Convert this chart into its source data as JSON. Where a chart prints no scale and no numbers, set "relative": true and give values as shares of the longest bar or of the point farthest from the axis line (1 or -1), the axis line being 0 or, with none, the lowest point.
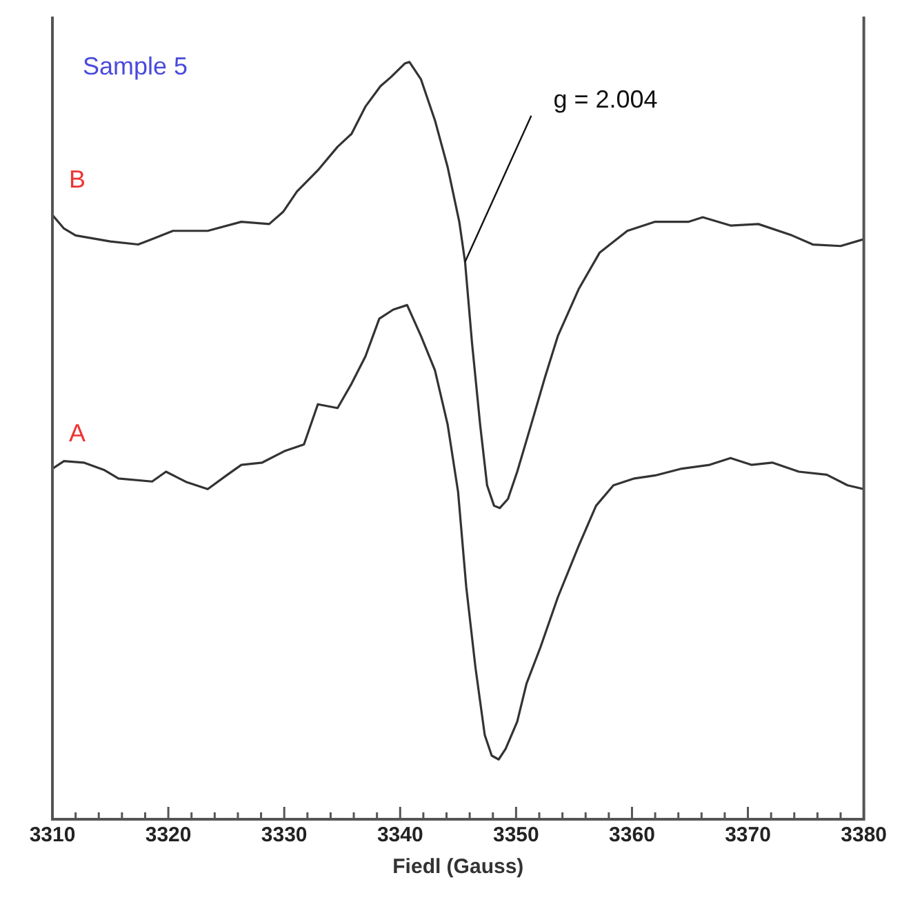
{
  "chart_data": {
    "type": "line",
    "title": "Sample 5",
    "xlabel": "Fiedl (Gauss)",
    "relative": true,
    "grid": false,
    "legend": false,
    "marker": "none",
    "line_style": "solid",
    "xlim": [
      3310,
      3380
    ],
    "xticks": [
      3310,
      {
        "value": 3312,
        "label": null
      },
      {
        "value": 3314,
        "label": null
      },
      {
        "value": 3316,
        "label": null
      },
      {
        "value": 3318,
        "label": null
      },
      3320,
      {
        "value": 3322,
        "label": null
      },
      {
        "value": 3324,
        "label": null
      },
      {
        "value": 3326,
        "label": null
      },
      {
        "value": 3328,
        "label": null
      },
      3330,
      {
        "value": 3332,
        "label": null
      },
      {
        "value": 3334,
        "label": null
      },
      {
        "value": 3336,
        "label": null
      },
      {
        "value": 3338,
        "label": null
      },
      3340,
      {
        "value": 3342,
        "label": null
      },
      {
        "value": 3344,
        "label": null
      },
      {
        "value": 3346,
        "label": null
      },
      {
        "value": 3348,
        "label": null
      },
      3350,
      {
        "value": 3352,
        "label": null
      },
      {
        "value": 3354,
        "label": null
      },
      {
        "value": 3356,
        "label": null
      },
      {
        "value": 3358,
        "label": null
      },
      3360,
      {
        "value": 3362,
        "label": null
      },
      {
        "value": 3364,
        "label": null
      },
      {
        "value": 3366,
        "label": null
      },
      {
        "value": 3368,
        "label": null
      },
      3370,
      {
        "value": 3372,
        "label": null
      },
      {
        "value": 3374,
        "label": null
      },
      {
        "value": 3376,
        "label": null
      },
      {
        "value": 3378,
        "label": null
      },
      3380
    ],
    "annotations": [
      {
        "text": "g = 2.004",
        "x": 3345.6,
        "y": 0.736
      }
    ],
    "series": [
      {
        "name": "B",
        "color": "#333333",
        "x": [
          3310,
          3311,
          3312,
          3315,
          3317.4,
          3318.6,
          3320.4,
          3323.4,
          3326.3,
          3328.7,
          3329.9,
          3331.1,
          3332.9,
          3334.6,
          3335.8,
          3337,
          3338.3,
          3339.2,
          3340.4,
          3340.8,
          3341.8,
          3343,
          3344.1,
          3345.1,
          3345.6,
          3346.2,
          3346.9,
          3347.5,
          3348.1,
          3348.6,
          3349.3,
          3350.1,
          3351.3,
          3352.5,
          3353.6,
          3355.4,
          3357.2,
          3359.6,
          3362,
          3364.9,
          3366.1,
          3368.5,
          3370.9,
          3373.8,
          3375.6,
          3378,
          3380
        ],
        "values": [
          0.798,
          0.78,
          0.771,
          0.763,
          0.759,
          0.766,
          0.777,
          0.777,
          0.789,
          0.786,
          0.802,
          0.829,
          0.857,
          0.888,
          0.905,
          0.941,
          0.968,
          0.98,
          0.998,
          1.0,
          0.977,
          0.923,
          0.861,
          0.789,
          0.736,
          0.629,
          0.521,
          0.441,
          0.414,
          0.411,
          0.423,
          0.459,
          0.521,
          0.584,
          0.638,
          0.7,
          0.748,
          0.777,
          0.789,
          0.789,
          0.795,
          0.784,
          0.786,
          0.771,
          0.759,
          0.757,
          0.766
        ]
      },
      {
        "name": "A",
        "color": "#333333",
        "x": [
          3310,
          3311,
          3312.7,
          3314.5,
          3315.7,
          3318.6,
          3319.8,
          3321.6,
          3323.4,
          3325.1,
          3326.3,
          3328.1,
          3330,
          3331.7,
          3332.9,
          3334.6,
          3335.8,
          3337,
          3338.2,
          3339.4,
          3340.6,
          3341.8,
          3343,
          3344.1,
          3345,
          3345.7,
          3346.5,
          3347.3,
          3347.9,
          3348.5,
          3349.1,
          3350.1,
          3350.9,
          3352.1,
          3353.6,
          3355.4,
          3356.9,
          3358.4,
          3360.2,
          3362,
          3364.3,
          3366.7,
          3368.5,
          3370.3,
          3372.1,
          3374.4,
          3376.8,
          3378.6,
          3380
        ],
        "values": [
          0.463,
          0.473,
          0.471,
          0.461,
          0.45,
          0.446,
          0.459,
          0.445,
          0.436,
          0.455,
          0.468,
          0.471,
          0.486,
          0.495,
          0.548,
          0.543,
          0.575,
          0.611,
          0.661,
          0.673,
          0.679,
          0.638,
          0.593,
          0.521,
          0.432,
          0.307,
          0.2,
          0.111,
          0.084,
          0.079,
          0.093,
          0.129,
          0.179,
          0.227,
          0.293,
          0.361,
          0.414,
          0.441,
          0.45,
          0.454,
          0.463,
          0.468,
          0.477,
          0.468,
          0.471,
          0.459,
          0.455,
          0.441,
          0.436
        ]
      }
    ]
  }
}
